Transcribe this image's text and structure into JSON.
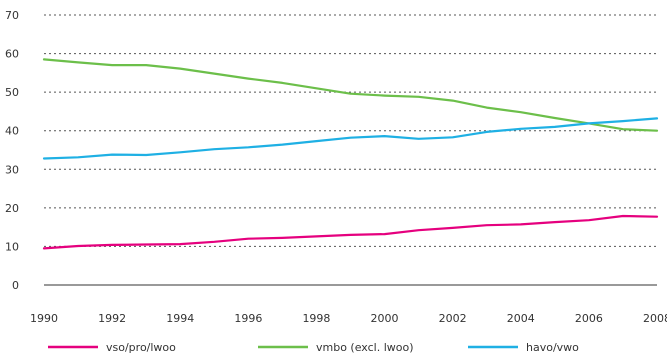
{
  "chart_data": {
    "type": "line",
    "title": "",
    "xlabel": "",
    "ylabel": "",
    "x": [
      1990,
      1991,
      1992,
      1993,
      1994,
      1995,
      1996,
      1997,
      1998,
      1999,
      2000,
      2001,
      2002,
      2003,
      2004,
      2005,
      2006,
      2007,
      2008
    ],
    "x_ticks": [
      "1990",
      "1992",
      "1994",
      "1996",
      "1998",
      "2000",
      "2002",
      "2004",
      "2006",
      "2008"
    ],
    "y_ticks": [
      "0",
      "10",
      "20",
      "30",
      "40",
      "50",
      "60",
      "70"
    ],
    "ylim": [
      0,
      70
    ],
    "xlim": [
      1990,
      2008
    ],
    "grid": "horizontal dotted",
    "legend_position": "bottom",
    "series": [
      {
        "name": "vso/pro/lwoo",
        "color": "#e5007e",
        "values": [
          9.5,
          10.1,
          10.4,
          10.5,
          10.6,
          11.2,
          12.0,
          12.2,
          12.6,
          13.0,
          13.2,
          14.2,
          14.8,
          15.5,
          15.7,
          16.3,
          16.8,
          17.9,
          17.7
        ]
      },
      {
        "name": "vmbo (excl. lwoo)",
        "color": "#6cbf4a",
        "values": [
          58.5,
          57.7,
          57.0,
          57.0,
          56.1,
          54.8,
          53.5,
          52.4,
          51.0,
          49.6,
          49.1,
          48.8,
          47.8,
          46.0,
          44.8,
          43.3,
          41.9,
          40.4,
          40.0
        ]
      },
      {
        "name": "havo/vwo",
        "color": "#1fb0e4",
        "values": [
          32.8,
          33.1,
          33.8,
          33.7,
          34.4,
          35.2,
          35.7,
          36.4,
          37.3,
          38.2,
          38.6,
          37.9,
          38.3,
          39.7,
          40.5,
          41.0,
          41.9,
          42.5,
          43.2
        ]
      }
    ]
  }
}
